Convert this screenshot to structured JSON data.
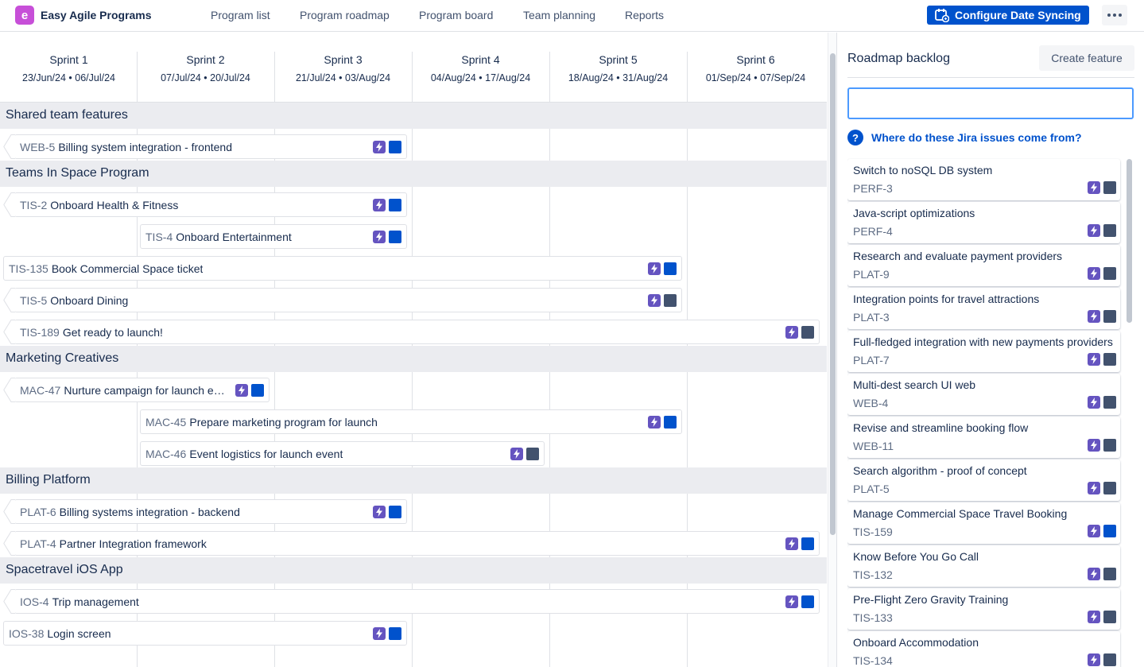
{
  "app": {
    "title": "Easy Agile Programs",
    "logo_letter": "e"
  },
  "nav": {
    "links": [
      "Program list",
      "Program roadmap",
      "Program board",
      "Team planning",
      "Reports"
    ],
    "configure_label": "Configure Date Syncing"
  },
  "sprints": [
    {
      "name": "Sprint 1",
      "dates": "23/Jun/24 • 06/Jul/24"
    },
    {
      "name": "Sprint 2",
      "dates": "07/Jul/24 • 20/Jul/24"
    },
    {
      "name": "Sprint 3",
      "dates": "21/Jul/24 • 03/Aug/24"
    },
    {
      "name": "Sprint 4",
      "dates": "04/Aug/24 • 17/Aug/24"
    },
    {
      "name": "Sprint 5",
      "dates": "18/Aug/24 • 31/Aug/24"
    },
    {
      "name": "Sprint 6",
      "dates": "01/Sep/24 • 07/Sep/24"
    }
  ],
  "teams": [
    {
      "name": "Shared team features",
      "features": [
        {
          "key": "WEB-5",
          "summary": "Billing system integration - frontend",
          "start": 0,
          "span": 3,
          "arrow": true,
          "status_color": "#0052cc"
        }
      ]
    },
    {
      "name": "Teams In Space Program",
      "features": [
        {
          "key": "TIS-2",
          "summary": "Onboard Health & Fitness",
          "start": 0,
          "span": 3,
          "arrow": true,
          "status_color": "#0052cc"
        },
        {
          "key": "TIS-4",
          "summary": "Onboard Entertainment",
          "start": 1,
          "span": 2,
          "arrow": false,
          "status_color": "#0052cc"
        },
        {
          "key": "TIS-135",
          "summary": "Book Commercial Space ticket",
          "start": 0,
          "span": 5,
          "arrow": false,
          "status_color": "#0052cc"
        },
        {
          "key": "TIS-5",
          "summary": "Onboard Dining",
          "start": 0,
          "span": 5,
          "arrow": true,
          "status_color": "#42526e"
        },
        {
          "key": "TIS-189",
          "summary": "Get ready to launch!",
          "start": 0,
          "span": 6,
          "arrow": true,
          "status_color": "#42526e"
        }
      ]
    },
    {
      "name": "Marketing Creatives",
      "features": [
        {
          "key": "MAC-47",
          "summary": "Nurture campaign for launch ev...",
          "start": 0,
          "span": 2,
          "arrow": true,
          "status_color": "#0052cc"
        },
        {
          "key": "MAC-45",
          "summary": "Prepare marketing program for launch",
          "start": 1,
          "span": 4,
          "arrow": false,
          "status_color": "#0052cc"
        },
        {
          "key": "MAC-46",
          "summary": "Event logistics for launch event",
          "start": 1,
          "span": 3,
          "arrow": false,
          "status_color": "#42526e"
        }
      ]
    },
    {
      "name": "Billing Platform",
      "features": [
        {
          "key": "PLAT-6",
          "summary": "Billing systems integration - backend",
          "start": 0,
          "span": 3,
          "arrow": true,
          "status_color": "#0052cc"
        },
        {
          "key": "PLAT-4",
          "summary": "Partner Integration framework",
          "start": 0,
          "span": 6,
          "arrow": true,
          "status_color": "#0052cc"
        }
      ]
    },
    {
      "name": "Spacetravel iOS App",
      "features": [
        {
          "key": "IOS-4",
          "summary": "Trip management",
          "start": 0,
          "span": 6,
          "arrow": true,
          "status_color": "#0052cc"
        },
        {
          "key": "IOS-38",
          "summary": "Login screen",
          "start": 0,
          "span": 3,
          "arrow": false,
          "status_color": "#0052cc"
        }
      ]
    }
  ],
  "panel": {
    "title": "Roadmap backlog",
    "create_label": "Create feature",
    "search_value": "",
    "help_text": "Where do these Jira issues come from?",
    "items": [
      {
        "summary": "Switch to noSQL DB system",
        "key": "PERF-3",
        "status_color": "#42526e"
      },
      {
        "summary": "Java-script optimizations",
        "key": "PERF-4",
        "status_color": "#42526e"
      },
      {
        "summary": "Research and evaluate payment providers",
        "key": "PLAT-9",
        "status_color": "#42526e"
      },
      {
        "summary": "Integration points for travel attractions",
        "key": "PLAT-3",
        "status_color": "#42526e"
      },
      {
        "summary": "Full-fledged integration with new payments providers",
        "key": "PLAT-7",
        "status_color": "#42526e"
      },
      {
        "summary": "Multi-dest search UI web",
        "key": "WEB-4",
        "status_color": "#42526e"
      },
      {
        "summary": "Revise and streamline booking flow",
        "key": "WEB-11",
        "status_color": "#42526e"
      },
      {
        "summary": "Search algorithm - proof of concept",
        "key": "PLAT-5",
        "status_color": "#42526e"
      },
      {
        "summary": "Manage Commercial Space Travel Booking",
        "key": "TIS-159",
        "status_color": "#0052cc"
      },
      {
        "summary": "Know Before You Go Call",
        "key": "TIS-132",
        "status_color": "#42526e"
      },
      {
        "summary": "Pre-Flight Zero Gravity Training",
        "key": "TIS-133",
        "status_color": "#42526e"
      },
      {
        "summary": "Onboard Accommodation",
        "key": "TIS-134",
        "status_color": "#42526e"
      }
    ]
  },
  "colors": {
    "accent": "#0052cc",
    "epic": "#6554c0",
    "band": "#ebecf0",
    "todo": "#42526e"
  },
  "icons": {
    "epic": "lightning-icon",
    "status": "status-square-icon",
    "help": "question-icon",
    "calendar": "calendar-sync-icon",
    "more": "more-icon"
  }
}
